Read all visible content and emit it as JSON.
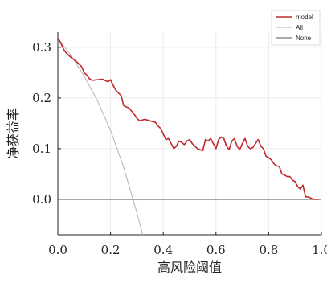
{
  "chart_data": {
    "type": "line",
    "xlabel": "高风险阈值",
    "ylabel": "净获益率",
    "xlim": [
      0.0,
      1.0
    ],
    "ylim": [
      -0.07,
      0.33
    ],
    "x_ticks": [
      {
        "value": 0.0,
        "label": "0.0"
      },
      {
        "value": 0.2,
        "label": "0.2"
      },
      {
        "value": 0.4,
        "label": "0.4"
      },
      {
        "value": 0.6,
        "label": "0.6"
      },
      {
        "value": 0.8,
        "label": "0.8"
      },
      {
        "value": 1.0,
        "label": "1.0"
      }
    ],
    "y_ticks": [
      {
        "value": 0.0,
        "label": "0.0"
      },
      {
        "value": 0.1,
        "label": "0.1"
      },
      {
        "value": 0.2,
        "label": "0.2"
      },
      {
        "value": 0.3,
        "label": "0.3"
      }
    ],
    "grid": true,
    "legend_position": "top-right",
    "series": [
      {
        "name": "model",
        "color": "#c0282d",
        "x": [
          0.0,
          0.01,
          0.02,
          0.03,
          0.05,
          0.07,
          0.09,
          0.1,
          0.11,
          0.12,
          0.13,
          0.15,
          0.17,
          0.19,
          0.2,
          0.21,
          0.22,
          0.23,
          0.24,
          0.25,
          0.27,
          0.29,
          0.3,
          0.31,
          0.33,
          0.35,
          0.37,
          0.38,
          0.39,
          0.41,
          0.42,
          0.43,
          0.44,
          0.45,
          0.46,
          0.47,
          0.48,
          0.49,
          0.5,
          0.51,
          0.53,
          0.55,
          0.56,
          0.57,
          0.58,
          0.6,
          0.61,
          0.62,
          0.63,
          0.64,
          0.65,
          0.66,
          0.67,
          0.68,
          0.69,
          0.7,
          0.71,
          0.72,
          0.73,
          0.74,
          0.75,
          0.76,
          0.77,
          0.78,
          0.79,
          0.8,
          0.81,
          0.82,
          0.83,
          0.84,
          0.85,
          0.86,
          0.87,
          0.88,
          0.89,
          0.9,
          0.91,
          0.92,
          0.93,
          0.94,
          0.95,
          0.97,
          0.99
        ],
        "y": [
          0.318,
          0.31,
          0.298,
          0.29,
          0.28,
          0.272,
          0.262,
          0.25,
          0.245,
          0.238,
          0.235,
          0.236,
          0.237,
          0.232,
          0.236,
          0.225,
          0.215,
          0.21,
          0.205,
          0.185,
          0.18,
          0.168,
          0.16,
          0.155,
          0.158,
          0.155,
          0.152,
          0.145,
          0.14,
          0.118,
          0.12,
          0.11,
          0.1,
          0.105,
          0.115,
          0.112,
          0.108,
          0.115,
          0.118,
          0.11,
          0.1,
          0.096,
          0.118,
          0.115,
          0.12,
          0.1,
          0.118,
          0.123,
          0.12,
          0.105,
          0.098,
          0.115,
          0.12,
          0.105,
          0.098,
          0.11,
          0.12,
          0.105,
          0.1,
          0.102,
          0.11,
          0.118,
          0.105,
          0.1,
          0.085,
          0.082,
          0.078,
          0.07,
          0.066,
          0.065,
          0.05,
          0.048,
          0.045,
          0.045,
          0.038,
          0.035,
          0.025,
          0.02,
          0.028,
          0.005,
          0.005,
          0.0,
          0.0
        ]
      },
      {
        "name": "All",
        "color": "#b4b4b4",
        "x": [
          0.0,
          0.05,
          0.1,
          0.15,
          0.2,
          0.25,
          0.3,
          0.33,
          0.35
        ],
        "y": [
          0.318,
          0.284,
          0.243,
          0.195,
          0.136,
          0.063,
          -0.027,
          -0.085,
          -0.125
        ]
      },
      {
        "name": "None",
        "color": "#555555",
        "x": [
          0.0,
          1.0
        ],
        "y": [
          0.0,
          0.0
        ]
      }
    ]
  }
}
